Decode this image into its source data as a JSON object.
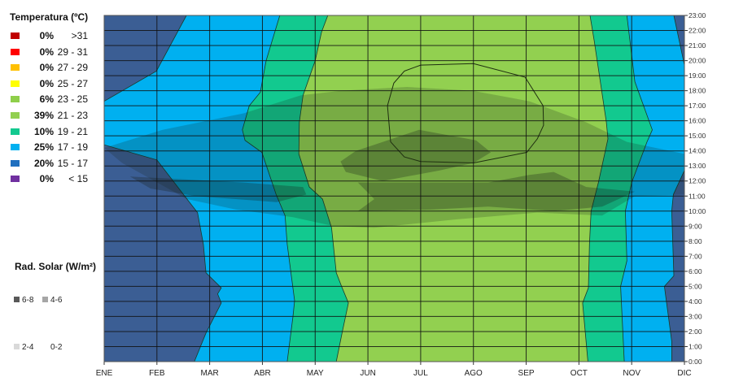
{
  "chart_data": {
    "type": "contour",
    "x": {
      "categories": [
        "ENE",
        "FEB",
        "MAR",
        "ABR",
        "MAY",
        "JUN",
        "JUL",
        "AGO",
        "SEP",
        "OCT",
        "NOV",
        "DIC"
      ]
    },
    "y": {
      "labels": [
        "0:00",
        "1:00",
        "2:00",
        "3:00",
        "4:00",
        "5:00",
        "6:00",
        "7:00",
        "8:00",
        "9:00",
        "10:00",
        "11:00",
        "12:00",
        "13:00",
        "14:00",
        "15:00",
        "16:00",
        "17:00",
        "18:00",
        "19:00",
        "20:00",
        "21:00",
        "22:00",
        "23:00"
      ],
      "range": [
        0,
        23
      ]
    },
    "temperature_legend": {
      "title": "Temperatura (ºC)",
      "items": [
        {
          "pct": "0%",
          "range": ">31",
          "color": "#c00000"
        },
        {
          "pct": "0%",
          "range": "29 - 31",
          "color": "#ff0000"
        },
        {
          "pct": "0%",
          "range": "27 - 29",
          "color": "#ffc000"
        },
        {
          "pct": "0%",
          "range": "25 - 27",
          "color": "#ffff00"
        },
        {
          "pct": "6%",
          "range": "23 - 25",
          "color": "#8fcf4a"
        },
        {
          "pct": "39%",
          "range": "21 - 23",
          "color": "#92d050"
        },
        {
          "pct": "10%",
          "range": "19 - 21",
          "color": "#12c98f"
        },
        {
          "pct": "25%",
          "range": "17 - 19",
          "color": "#00b0f0"
        },
        {
          "pct": "20%",
          "range": "15 - 17",
          "color": "#1f6fbf"
        },
        {
          "pct": "0%",
          "range": "< 15",
          "color": "#7030a0"
        }
      ]
    },
    "radiation_legend": {
      "title": "Rad. Solar (W/m²)",
      "items": [
        {
          "range": "6-8",
          "color": "#595959"
        },
        {
          "range": "4-6",
          "color": "#a6a6a6"
        },
        {
          "range": "2-4",
          "color": "#d9d9d9"
        },
        {
          "range": "0-2",
          "color": "#ffffff"
        }
      ]
    },
    "region_colors": {
      "15-17": "#3b5e94",
      "17-19": "#00b0f0",
      "19-21": "#12c98f",
      "21-23": "#92d050"
    },
    "temperature_regions": [
      {
        "band": "15-17",
        "points": [
          [
            0,
            23
          ],
          [
            1.56,
            23
          ],
          [
            0.99,
            19.3
          ],
          [
            0,
            17.3
          ]
        ]
      },
      {
        "band": "15-17",
        "points": [
          [
            0,
            14.4
          ],
          [
            1.0,
            13.4
          ],
          [
            1.57,
            10.8
          ],
          [
            1.77,
            9.9
          ],
          [
            1.88,
            7.8
          ],
          [
            1.93,
            5.9
          ],
          [
            2.22,
            4.9
          ],
          [
            2.15,
            4.5
          ],
          [
            2.22,
            3.9
          ],
          [
            1.93,
            1.9
          ],
          [
            1.71,
            0
          ],
          [
            0,
            0
          ]
        ]
      },
      {
        "band": "15-17",
        "points": [
          [
            10.8,
            23
          ],
          [
            11,
            23
          ],
          [
            11,
            19.7
          ]
        ]
      },
      {
        "band": "15-17",
        "points": [
          [
            11,
            12.7
          ],
          [
            10.79,
            11.1
          ],
          [
            10.76,
            10
          ],
          [
            10.8,
            5.7
          ],
          [
            10.62,
            5.0
          ],
          [
            10.76,
            1.35
          ],
          [
            10.76,
            0
          ],
          [
            11,
            0
          ]
        ]
      },
      {
        "band": "19-21",
        "points": [
          [
            3.33,
            23
          ],
          [
            3.07,
            20
          ],
          [
            2.96,
            17.9
          ],
          [
            2.75,
            17
          ],
          [
            2.62,
            15.4
          ],
          [
            2.67,
            14.7
          ],
          [
            2.99,
            13.9
          ],
          [
            3.26,
            11.1
          ],
          [
            3.43,
            9.7
          ],
          [
            3.47,
            7.8
          ],
          [
            3.61,
            4.05
          ],
          [
            3.58,
            3.0
          ],
          [
            3.47,
            0
          ],
          [
            9.86,
            0
          ],
          [
            9.79,
            5.0
          ],
          [
            9.91,
            6.7
          ],
          [
            9.88,
            10
          ],
          [
            10.0,
            11.9
          ],
          [
            10.29,
            14.6
          ],
          [
            10.39,
            15.4
          ],
          [
            10.06,
            18.6
          ],
          [
            9.91,
            23
          ]
        ]
      },
      {
        "band": "21-23",
        "points": [
          [
            4.24,
            23
          ],
          [
            4.12,
            21.9
          ],
          [
            4.0,
            20
          ],
          [
            3.77,
            17.7
          ],
          [
            3.7,
            15.9
          ],
          [
            3.69,
            13.8
          ],
          [
            3.89,
            11.6
          ],
          [
            4.14,
            10.8
          ],
          [
            4.31,
            8.9
          ],
          [
            4.4,
            5.9
          ],
          [
            4.5,
            5.0
          ],
          [
            4.63,
            3.9
          ],
          [
            4.51,
            1.9
          ],
          [
            4.4,
            0
          ],
          [
            9.17,
            0
          ],
          [
            9.07,
            3.9
          ],
          [
            9.18,
            4.9
          ],
          [
            9.2,
            7.8
          ],
          [
            9.23,
            10.0
          ],
          [
            9.37,
            11.9
          ],
          [
            9.55,
            14.8
          ],
          [
            9.52,
            15.9
          ],
          [
            9.29,
            21.3
          ],
          [
            9.21,
            23
          ]
        ]
      }
    ],
    "contour_23_25": [
      [
        5.69,
        19.3
      ],
      [
        6.0,
        19.7
      ],
      [
        7.0,
        19.8
      ],
      [
        7.98,
        18.9
      ],
      [
        8.32,
        17.0
      ],
      [
        8.33,
        15.7
      ],
      [
        8.21,
        14.8
      ],
      [
        8.01,
        13.9
      ],
      [
        7.0,
        13.2
      ],
      [
        6.0,
        13.3
      ],
      [
        5.69,
        13.6
      ],
      [
        5.43,
        14.6
      ],
      [
        5.37,
        17.0
      ],
      [
        5.49,
        18.5
      ]
    ],
    "radiation_regions": [
      {
        "band": "4-6",
        "points": [
          [
            0,
            14.2
          ],
          [
            1.11,
            15.4
          ],
          [
            2.65,
            16.5
          ],
          [
            3.73,
            17.7
          ],
          [
            4.5,
            18.0
          ],
          [
            5.74,
            18.25
          ],
          [
            6.98,
            18.0
          ],
          [
            8.06,
            17.3
          ],
          [
            9.14,
            15.9
          ],
          [
            9.91,
            14.6
          ],
          [
            11,
            13.8
          ],
          [
            11,
            11.1
          ],
          [
            10.06,
            11.0
          ],
          [
            9.44,
            9.7
          ],
          [
            8.21,
            9.9
          ],
          [
            6.67,
            9.45
          ],
          [
            5.12,
            8.9
          ],
          [
            4.35,
            9.0
          ],
          [
            3.58,
            9.6
          ],
          [
            2.5,
            10.1
          ],
          [
            1.57,
            10.8
          ],
          [
            0.34,
            13.2
          ]
        ]
      },
      {
        "band": "6-8",
        "points": [
          [
            0.49,
            12.3
          ],
          [
            2.65,
            11.9
          ],
          [
            3.77,
            11.6
          ],
          [
            3.83,
            11.1
          ],
          [
            3.27,
            10.6
          ],
          [
            1.73,
            11.0
          ],
          [
            0.88,
            11.5
          ]
        ]
      },
      {
        "band": "6-8",
        "points": [
          [
            4.48,
            13.3
          ],
          [
            4.77,
            14.0
          ],
          [
            5.97,
            15.4
          ],
          [
            7.05,
            14.7
          ],
          [
            7.33,
            13.9
          ],
          [
            7.0,
            13.2
          ],
          [
            6.36,
            12.7
          ],
          [
            5.28,
            12.0
          ],
          [
            4.58,
            12.6
          ]
        ]
      },
      {
        "band": "6-8",
        "points": [
          [
            4.81,
            11.9
          ],
          [
            7.28,
            11.9
          ],
          [
            8.06,
            12.4
          ],
          [
            8.52,
            12.6
          ],
          [
            9.14,
            11.6
          ],
          [
            10.06,
            11.3
          ],
          [
            9.44,
            10.3
          ],
          [
            8.52,
            10.0
          ],
          [
            7.28,
            10.3
          ],
          [
            6.2,
            10.1
          ],
          [
            4.81,
            10.0
          ],
          [
            5.12,
            10.8
          ]
        ]
      }
    ]
  }
}
